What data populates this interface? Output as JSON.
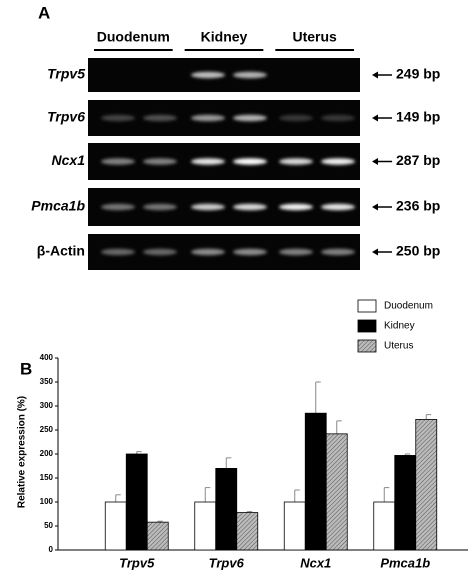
{
  "panel_a": {
    "label": "A",
    "tissues": [
      "Duodenum",
      "Kidney",
      "Uterus"
    ],
    "rows": [
      {
        "gene": "Trpv5",
        "size": "249 bp"
      },
      {
        "gene": "Trpv6",
        "size": "149 bp"
      },
      {
        "gene": "Ncx1",
        "size": "287 bp"
      },
      {
        "gene": "Pmca1b",
        "size": "236 bp"
      },
      {
        "gene": "β-Actin",
        "size": "250 bp"
      }
    ]
  },
  "chart_data": {
    "type": "bar",
    "panel": "B",
    "ylabel": "Relative expression (%)",
    "categories": [
      "Trpv5",
      "Trpv6",
      "Ncx1",
      "Pmca1b"
    ],
    "series": [
      {
        "name": "Duodenum",
        "color": "#ffffff",
        "values": [
          100,
          100,
          100,
          100
        ],
        "errors": [
          15,
          30,
          25,
          30
        ]
      },
      {
        "name": "Kidney",
        "color": "#000000",
        "values": [
          200,
          170,
          285,
          197
        ],
        "errors": [
          5,
          22,
          65,
          3
        ]
      },
      {
        "name": "Uterus",
        "color": "#bbbbbb",
        "pattern": "hatch",
        "values": [
          58,
          78,
          242,
          272
        ],
        "errors": [
          2,
          2,
          27,
          10
        ]
      }
    ],
    "ylim": [
      0,
      400
    ],
    "yticks": [
      0,
      50,
      100,
      150,
      200,
      250,
      300,
      350,
      400
    ],
    "error_bars": true,
    "legend": "top-right"
  }
}
